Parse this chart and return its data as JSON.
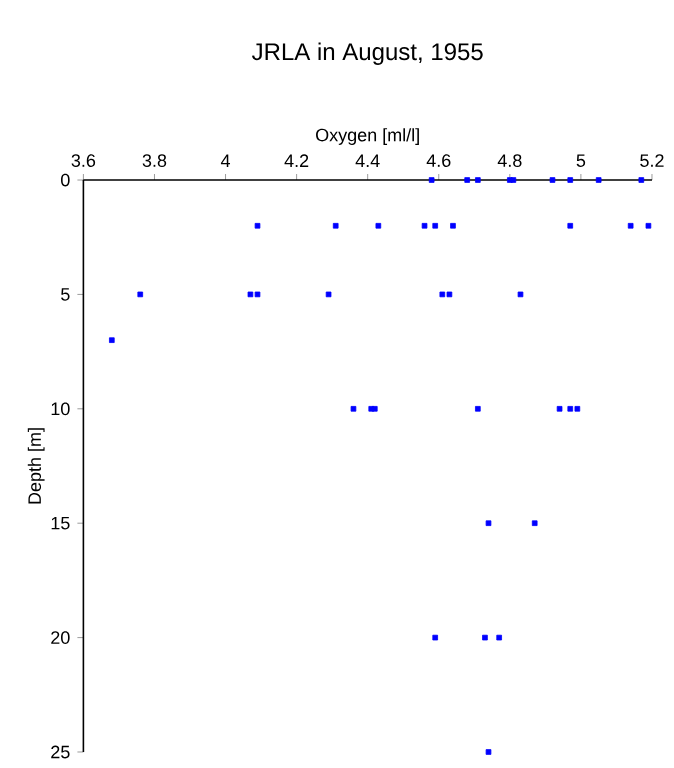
{
  "chart_data": {
    "type": "scatter",
    "title": "JRLA in August, 1955",
    "xlabel": "Oxygen [ml/l]",
    "ylabel": "Depth [m]",
    "xlim": [
      3.6,
      5.2
    ],
    "xticks": [
      3.6,
      3.8,
      4,
      4.2,
      4.4,
      4.6,
      4.8,
      5,
      5.2
    ],
    "ylim": [
      25,
      0
    ],
    "yticks": [
      0,
      5,
      10,
      15,
      20,
      25
    ],
    "marker": "square",
    "grid": false,
    "series": [
      {
        "color": "#0000ff",
        "x": [
          4.58,
          4.68,
          4.71,
          4.8,
          4.81,
          4.92,
          4.97,
          5.05,
          5.17,
          4.09,
          4.31,
          4.43,
          4.56,
          4.59,
          4.64,
          4.97,
          5.14,
          5.19,
          3.76,
          4.07,
          4.09,
          4.29,
          4.61,
          4.63,
          4.83,
          3.68,
          4.36,
          4.41,
          4.42,
          4.71,
          4.94,
          4.97,
          4.99,
          4.74,
          4.87,
          4.59,
          4.73,
          4.77,
          4.74
        ],
        "values": [
          0,
          0,
          0,
          0,
          0,
          0,
          0,
          0,
          0,
          2,
          2,
          2,
          2,
          2,
          2,
          2,
          2,
          2,
          5,
          5,
          5,
          5,
          5,
          5,
          5,
          7,
          10,
          10,
          10,
          10,
          10,
          10,
          10,
          15,
          15,
          20,
          20,
          20,
          25
        ]
      }
    ]
  }
}
